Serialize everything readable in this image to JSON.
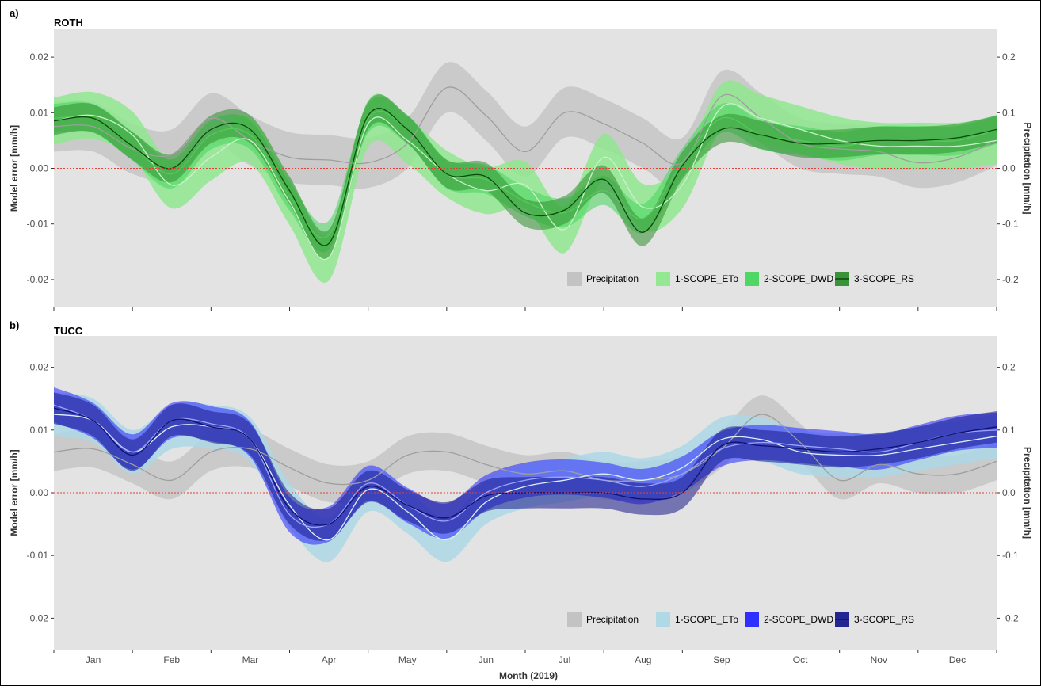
{
  "figure": {
    "xlabel": "Month (2019)",
    "month_labels": [
      "Jan",
      "Feb",
      "Mar",
      "Apr",
      "May",
      "Jun",
      "Jul",
      "Aug",
      "Sep",
      "Oct",
      "Nov",
      "Dec"
    ]
  },
  "chart_data": [
    {
      "type": "line",
      "panel_tag": "a)",
      "title": "ROTH",
      "ylabel": "Model error [mm/h]",
      "y2label": "Precipitation [mm/h]",
      "xlabel": "",
      "ylim": [
        -0.025,
        0.025
      ],
      "y2lim": [
        -0.25,
        0.25
      ],
      "yticks": [
        -0.02,
        -0.01,
        0.0,
        0.01,
        0.02
      ],
      "yticklabels": [
        "-0.02",
        "-0.01",
        "0.00",
        "0.01",
        "0.02"
      ],
      "y2ticks": [
        -0.2,
        -0.1,
        0.0,
        0.1,
        0.2
      ],
      "y2ticklabels": [
        "-0.2",
        "-0.1",
        "0.0",
        "0.1",
        "0.2"
      ],
      "grid": false,
      "legend_position": "bottom-right",
      "series": [
        {
          "name": "Precipitation",
          "axis": "right",
          "color": "#9e9e9e",
          "fill": "#bfbfbf",
          "x": [
            0.0,
            0.5,
            1.0,
            1.5,
            2.0,
            2.5,
            3.0,
            3.5,
            4.0,
            4.5,
            5.0,
            5.5,
            6.0,
            6.5,
            7.0,
            7.5,
            8.0,
            8.5,
            9.0,
            9.5,
            10.0,
            10.5,
            11.0,
            11.5,
            12.0
          ],
          "values": [
            0.075,
            0.075,
            0.035,
            0.025,
            0.09,
            0.05,
            0.02,
            0.015,
            0.01,
            0.045,
            0.145,
            0.095,
            0.03,
            0.1,
            0.08,
            0.045,
            0.01,
            0.13,
            0.09,
            0.045,
            0.035,
            0.03,
            0.01,
            0.02,
            0.05
          ],
          "band": 0.045
        },
        {
          "name": "1-SCOPE_ETo",
          "color": "#c9f3c9",
          "fill": "#8fe88f",
          "x": [
            0.0,
            0.5,
            1.0,
            1.5,
            2.0,
            2.5,
            3.0,
            3.5,
            4.0,
            4.5,
            5.0,
            5.5,
            6.0,
            6.5,
            7.0,
            7.5,
            8.0,
            8.5,
            9.0,
            9.5,
            10.0,
            10.5,
            11.0,
            11.5,
            12.0
          ],
          "values": [
            0.0085,
            0.0095,
            0.006,
            -0.003,
            0.002,
            0.005,
            -0.006,
            -0.016,
            0.008,
            0.005,
            -0.001,
            -0.004,
            -0.003,
            -0.011,
            0.002,
            -0.007,
            -0.003,
            0.011,
            0.009,
            0.007,
            0.005,
            0.004,
            0.004,
            0.004,
            0.005
          ],
          "band": 0.0042
        },
        {
          "name": "2-SCOPE_DWD",
          "color": "#56c95b",
          "fill": "#47d65c",
          "x": [
            0.0,
            0.5,
            1.0,
            1.5,
            2.0,
            2.5,
            3.0,
            3.5,
            4.0,
            4.5,
            5.0,
            5.5,
            6.0,
            6.5,
            7.0,
            7.5,
            8.0,
            8.5,
            9.0,
            9.5,
            10.0,
            10.5,
            11.0,
            11.5,
            12.0
          ],
          "values": [
            0.009,
            0.009,
            0.004,
            -0.001,
            0.006,
            0.006,
            -0.005,
            -0.012,
            0.009,
            0.007,
            -0.001,
            -0.002,
            -0.006,
            -0.008,
            -0.004,
            -0.009,
            0.001,
            0.009,
            0.006,
            0.005,
            0.004,
            0.005,
            0.005,
            0.005,
            0.007
          ],
          "band": 0.0026
        },
        {
          "name": "3-SCOPE_RS",
          "color": "#0b4a0b",
          "fill": "#2f8f2f",
          "x": [
            0.0,
            0.5,
            1.0,
            1.5,
            2.0,
            2.5,
            3.0,
            3.5,
            4.0,
            4.5,
            5.0,
            5.5,
            6.0,
            6.5,
            7.0,
            7.5,
            8.0,
            8.5,
            9.0,
            9.5,
            10.0,
            10.5,
            11.0,
            11.5,
            12.0
          ],
          "values": [
            0.0085,
            0.009,
            0.004,
            0.0,
            0.007,
            0.007,
            -0.004,
            -0.0135,
            0.0095,
            0.007,
            -0.001,
            -0.0015,
            -0.008,
            -0.0075,
            -0.002,
            -0.0115,
            0.0005,
            0.007,
            0.006,
            0.0045,
            0.0045,
            0.005,
            0.005,
            0.0055,
            0.007
          ],
          "band": 0.0025
        }
      ]
    },
    {
      "type": "line",
      "panel_tag": "b)",
      "title": "TUCC",
      "ylabel": "Model error [mm/h]",
      "y2label": "Precipitation [mm/h]",
      "xlabel": "Month (2019)",
      "ylim": [
        -0.025,
        0.025
      ],
      "y2lim": [
        -0.25,
        0.25
      ],
      "yticks": [
        -0.02,
        -0.01,
        0.0,
        0.01,
        0.02
      ],
      "yticklabels": [
        "-0.02",
        "-0.01",
        "0.00",
        "0.01",
        "0.02"
      ],
      "y2ticks": [
        -0.2,
        -0.1,
        0.0,
        0.1,
        0.2
      ],
      "y2ticklabels": [
        "-0.2",
        "-0.1",
        "0.0",
        "0.1",
        "0.2"
      ],
      "grid": false,
      "legend_position": "bottom-right",
      "series": [
        {
          "name": "Precipitation",
          "axis": "right",
          "color": "#9e9e9e",
          "fill": "#bfbfbf",
          "x": [
            0.0,
            0.5,
            1.0,
            1.5,
            2.0,
            2.5,
            3.0,
            3.5,
            4.0,
            4.5,
            5.0,
            5.5,
            6.0,
            6.5,
            7.0,
            7.5,
            8.0,
            8.5,
            9.0,
            9.5,
            10.0,
            10.5,
            11.0,
            11.5,
            12.0
          ],
          "values": [
            0.065,
            0.07,
            0.045,
            0.02,
            0.065,
            0.07,
            0.04,
            0.015,
            0.02,
            0.06,
            0.065,
            0.045,
            0.03,
            0.035,
            0.02,
            0.02,
            0.03,
            0.07,
            0.125,
            0.08,
            0.02,
            0.045,
            0.03,
            0.03,
            0.05
          ],
          "band": 0.03
        },
        {
          "name": "1-SCOPE_ETo",
          "color": "#d9f1f6",
          "fill": "#add8e6",
          "x": [
            0.0,
            0.5,
            1.0,
            1.5,
            2.0,
            2.5,
            3.0,
            3.5,
            4.0,
            4.5,
            5.0,
            5.5,
            6.0,
            6.5,
            7.0,
            7.5,
            8.0,
            8.5,
            9.0,
            9.5,
            10.0,
            10.5,
            11.0,
            11.5,
            12.0
          ],
          "values": [
            0.0125,
            0.0115,
            0.0065,
            0.0105,
            0.0105,
            0.0085,
            -0.002,
            -0.0075,
            0.0005,
            -0.003,
            -0.0075,
            -0.0015,
            0.001,
            0.002,
            0.003,
            0.002,
            0.004,
            0.0085,
            0.0085,
            0.0065,
            0.006,
            0.006,
            0.007,
            0.008,
            0.009
          ],
          "band": 0.0035
        },
        {
          "name": "2-SCOPE_DWD",
          "color": "#9aa3ff",
          "fill": "#2626ff",
          "x": [
            0.0,
            0.5,
            1.0,
            1.5,
            2.0,
            2.5,
            3.0,
            3.5,
            4.0,
            4.5,
            5.0,
            5.5,
            6.0,
            6.5,
            7.0,
            7.5,
            8.0,
            8.5,
            9.0,
            9.5,
            10.0,
            10.5,
            11.0,
            11.5,
            12.0
          ],
          "values": [
            0.014,
            0.0115,
            0.0065,
            0.0115,
            0.011,
            0.0085,
            -0.0035,
            -0.005,
            0.0015,
            -0.002,
            -0.0045,
            0.0,
            0.002,
            0.0025,
            0.002,
            0.001,
            0.003,
            0.007,
            0.008,
            0.0075,
            0.007,
            0.0065,
            0.008,
            0.0095,
            0.01
          ],
          "band": 0.0028
        },
        {
          "name": "3-SCOPE_RS",
          "color": "#10106e",
          "fill": "#1a1a8c",
          "x": [
            0.0,
            0.5,
            1.0,
            1.5,
            2.0,
            2.5,
            3.0,
            3.5,
            4.0,
            4.5,
            5.0,
            5.5,
            6.0,
            6.5,
            7.0,
            7.5,
            8.0,
            8.5,
            9.0,
            9.5,
            10.0,
            10.5,
            11.0,
            11.5,
            12.0
          ],
          "values": [
            0.0135,
            0.0115,
            0.006,
            0.0115,
            0.0105,
            0.0085,
            -0.0025,
            -0.005,
            0.001,
            -0.002,
            -0.004,
            -0.0005,
            0.0,
            0.0,
            0.0,
            -0.001,
            0.0,
            0.0075,
            0.0075,
            0.007,
            0.0065,
            0.007,
            0.008,
            0.0095,
            0.0105
          ],
          "band": 0.0025
        }
      ]
    }
  ]
}
